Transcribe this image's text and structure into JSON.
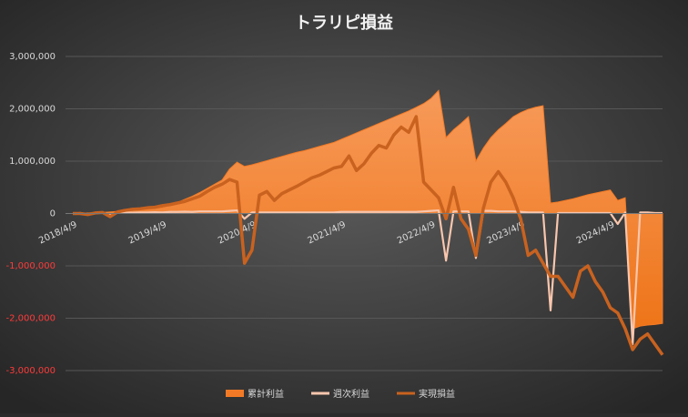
{
  "chart_data": {
    "type": "combo",
    "title": "トラリピ損益",
    "categories": [
      "2018/4/9",
      null,
      null,
      null,
      null,
      null,
      null,
      null,
      null,
      null,
      null,
      null,
      "2019/4/9",
      null,
      null,
      null,
      null,
      null,
      null,
      null,
      null,
      null,
      null,
      null,
      "2020/4/9",
      null,
      null,
      null,
      null,
      null,
      null,
      null,
      null,
      null,
      null,
      null,
      "2021/4/9",
      null,
      null,
      null,
      null,
      null,
      null,
      null,
      null,
      null,
      null,
      null,
      "2022/4/9",
      null,
      null,
      null,
      null,
      null,
      null,
      null,
      null,
      null,
      null,
      null,
      "2023/4/9",
      null,
      null,
      null,
      null,
      null,
      null,
      null,
      null,
      null,
      null,
      null,
      "2024/4/9",
      null,
      null,
      null,
      null,
      null,
      null,
      null
    ],
    "series": [
      {
        "name": "累計利益",
        "kind": "area",
        "color": "#f27a26",
        "values": [
          0,
          5000,
          10000,
          15000,
          20000,
          30000,
          40000,
          50000,
          60000,
          70000,
          80000,
          95000,
          110000,
          160000,
          210000,
          270000,
          330000,
          400000,
          480000,
          560000,
          640000,
          850000,
          980000,
          900000,
          930000,
          970000,
          1010000,
          1050000,
          1090000,
          1130000,
          1170000,
          1200000,
          1240000,
          1280000,
          1320000,
          1360000,
          1420000,
          1480000,
          1540000,
          1600000,
          1660000,
          1720000,
          1780000,
          1840000,
          1900000,
          1960000,
          2030000,
          2100000,
          2200000,
          2350000,
          1450000,
          1600000,
          1720000,
          1850000,
          1000000,
          1250000,
          1450000,
          1600000,
          1720000,
          1850000,
          1930000,
          1990000,
          2030000,
          2060000,
          200000,
          220000,
          250000,
          280000,
          320000,
          360000,
          390000,
          420000,
          450000,
          250000,
          300000,
          -2200000,
          -2150000,
          -2130000,
          -2120000,
          -2100000
        ]
      },
      {
        "name": "週次利益",
        "kind": "line",
        "color": "#f9c6ad",
        "values": [
          0,
          10000,
          -20000,
          15000,
          20000,
          -30000,
          20000,
          20000,
          15000,
          20000,
          20000,
          25000,
          20000,
          30000,
          30000,
          35000,
          30000,
          40000,
          40000,
          40000,
          40000,
          50000,
          60000,
          -100000,
          20000,
          20000,
          20000,
          20000,
          20000,
          20000,
          20000,
          20000,
          20000,
          20000,
          20000,
          20000,
          30000,
          30000,
          30000,
          30000,
          30000,
          30000,
          30000,
          30000,
          30000,
          30000,
          30000,
          40000,
          50000,
          60000,
          -900000,
          40000,
          40000,
          40000,
          -850000,
          50000,
          50000,
          40000,
          40000,
          40000,
          30000,
          20000,
          20000,
          20000,
          -1850000,
          10000,
          10000,
          10000,
          10000,
          10000,
          10000,
          10000,
          10000,
          -200000,
          20000,
          -2500000,
          20000,
          20000,
          10000,
          10000
        ]
      },
      {
        "name": "実現損益",
        "kind": "line",
        "color": "#c9621f",
        "values": [
          0,
          0,
          -20000,
          10000,
          20000,
          -60000,
          30000,
          60000,
          80000,
          90000,
          110000,
          120000,
          150000,
          170000,
          200000,
          230000,
          280000,
          330000,
          420000,
          500000,
          560000,
          650000,
          600000,
          -950000,
          -700000,
          350000,
          420000,
          250000,
          380000,
          450000,
          520000,
          600000,
          680000,
          730000,
          800000,
          870000,
          900000,
          1100000,
          820000,
          950000,
          1150000,
          1300000,
          1250000,
          1500000,
          1650000,
          1550000,
          1850000,
          600000,
          450000,
          300000,
          -100000,
          500000,
          -100000,
          -300000,
          -800000,
          100000,
          600000,
          800000,
          600000,
          300000,
          -100000,
          -800000,
          -700000,
          -950000,
          -1200000,
          -1200000,
          -1400000,
          -1600000,
          -1100000,
          -1000000,
          -1300000,
          -1500000,
          -1800000,
          -1900000,
          -2200000,
          -2600000,
          -2400000,
          -2300000,
          -2500000,
          -2700000
        ]
      }
    ],
    "ylim": [
      -3000000,
      3000000
    ],
    "yticks": [
      {
        "value": -3000000,
        "label": "-3,000,000"
      },
      {
        "value": -2000000,
        "label": "-2,000,000"
      },
      {
        "value": -1000000,
        "label": "-1,000,000"
      },
      0,
      {
        "value": 1000000,
        "label": "1,000,000"
      },
      {
        "value": 2000000,
        "label": "2,000,000"
      },
      {
        "value": 3000000,
        "label": "3,000,000"
      }
    ],
    "grid": true,
    "negative_tick_color": "#ff3a3a",
    "legend": "bottom"
  }
}
